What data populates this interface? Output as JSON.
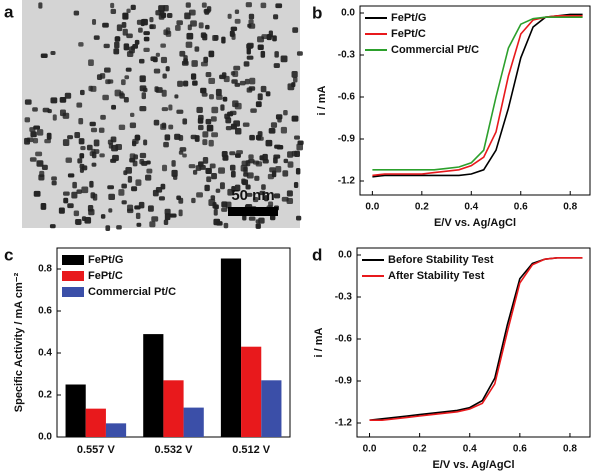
{
  "image": {
    "panel_label": "a",
    "scale_bar": "50 nm"
  },
  "chart_data": [
    {
      "type": "line",
      "panel_label": "b",
      "xlabel": "E/V vs. Ag/AgCl",
      "ylabel": "i / mA",
      "x": [
        0,
        0.05,
        0.1,
        0.15,
        0.2,
        0.25,
        0.3,
        0.35,
        0.4,
        0.45,
        0.5,
        0.55,
        0.6,
        0.65,
        0.7,
        0.75,
        0.8,
        0.85
      ],
      "series": [
        {
          "name": "FePt/G",
          "color": "#000000",
          "values": [
            -1.17,
            -1.16,
            -1.16,
            -1.16,
            -1.16,
            -1.16,
            -1.16,
            -1.16,
            -1.15,
            -1.12,
            -0.98,
            -0.68,
            -0.32,
            -0.1,
            -0.03,
            -0.02,
            -0.01,
            -0.01
          ]
        },
        {
          "name": "FePt/C",
          "color": "#e8191c",
          "values": [
            -1.16,
            -1.15,
            -1.15,
            -1.15,
            -1.15,
            -1.14,
            -1.13,
            -1.12,
            -1.09,
            -1.03,
            -0.85,
            -0.45,
            -0.15,
            -0.05,
            -0.03,
            -0.02,
            -0.02,
            -0.02
          ]
        },
        {
          "name": "Commercial Pt/C",
          "color": "#2ca02c",
          "values": [
            -1.12,
            -1.12,
            -1.12,
            -1.12,
            -1.12,
            -1.12,
            -1.11,
            -1.1,
            -1.07,
            -0.98,
            -0.6,
            -0.25,
            -0.08,
            -0.04,
            -0.03,
            -0.03,
            -0.03,
            -0.03
          ]
        }
      ],
      "xlim": [
        -0.05,
        0.88
      ],
      "xticks": [
        {
          "value": 0,
          "label": "0.0"
        },
        0.2,
        0.4,
        0.6,
        0.8
      ],
      "ylim": [
        -1.3,
        0.05
      ],
      "yticks": [
        {
          "value": 0,
          "label": "0.0"
        },
        -0.3,
        -0.6,
        -0.9,
        -1.2
      ],
      "legend": "upper left"
    },
    {
      "type": "bar",
      "panel_label": "c",
      "ylabel": "Specific Activity / mA cm⁻²",
      "categories": [
        "0.557 V",
        "0.532 V",
        "0.512 V"
      ],
      "series": [
        {
          "name": "FePt/G",
          "color": "#000000",
          "values": [
            0.25,
            0.49,
            0.85
          ]
        },
        {
          "name": "FePt/C",
          "color": "#e8191c",
          "values": [
            0.135,
            0.27,
            0.43
          ]
        },
        {
          "name": "Commercial Pt/C",
          "color": "#3b4fa8",
          "values": [
            0.065,
            0.14,
            0.27
          ]
        }
      ],
      "ylim": [
        0,
        0.9
      ],
      "yticks": [
        {
          "value": 0,
          "label": "0.0"
        },
        0.2,
        0.4,
        0.6,
        0.8
      ],
      "legend": "upper left"
    },
    {
      "type": "line",
      "panel_label": "d",
      "xlabel": "E/V vs. Ag/AgCl",
      "ylabel": "i / mA",
      "x": [
        0,
        0.05,
        0.1,
        0.15,
        0.2,
        0.25,
        0.3,
        0.35,
        0.4,
        0.45,
        0.5,
        0.55,
        0.6,
        0.65,
        0.7,
        0.75,
        0.8,
        0.85
      ],
      "series": [
        {
          "name": "Before Stability Test",
          "color": "#000000",
          "values": [
            -1.18,
            -1.17,
            -1.16,
            -1.15,
            -1.14,
            -1.13,
            -1.12,
            -1.11,
            -1.09,
            -1.04,
            -0.88,
            -0.5,
            -0.17,
            -0.06,
            -0.03,
            -0.02,
            -0.02,
            -0.02
          ]
        },
        {
          "name": "After Stability Test",
          "color": "#e8191c",
          "values": [
            -1.18,
            -1.18,
            -1.17,
            -1.16,
            -1.15,
            -1.14,
            -1.13,
            -1.12,
            -1.1,
            -1.06,
            -0.92,
            -0.55,
            -0.2,
            -0.07,
            -0.03,
            -0.02,
            -0.02,
            -0.02
          ]
        }
      ],
      "xlim": [
        -0.05,
        0.88
      ],
      "xticks": [
        {
          "value": 0,
          "label": "0.0"
        },
        0.2,
        0.4,
        0.6,
        0.8
      ],
      "ylim": [
        -1.3,
        0.05
      ],
      "yticks": [
        {
          "value": 0,
          "label": "0.0"
        },
        -0.3,
        -0.6,
        -0.9,
        -1.2
      ],
      "legend": "upper left"
    }
  ]
}
